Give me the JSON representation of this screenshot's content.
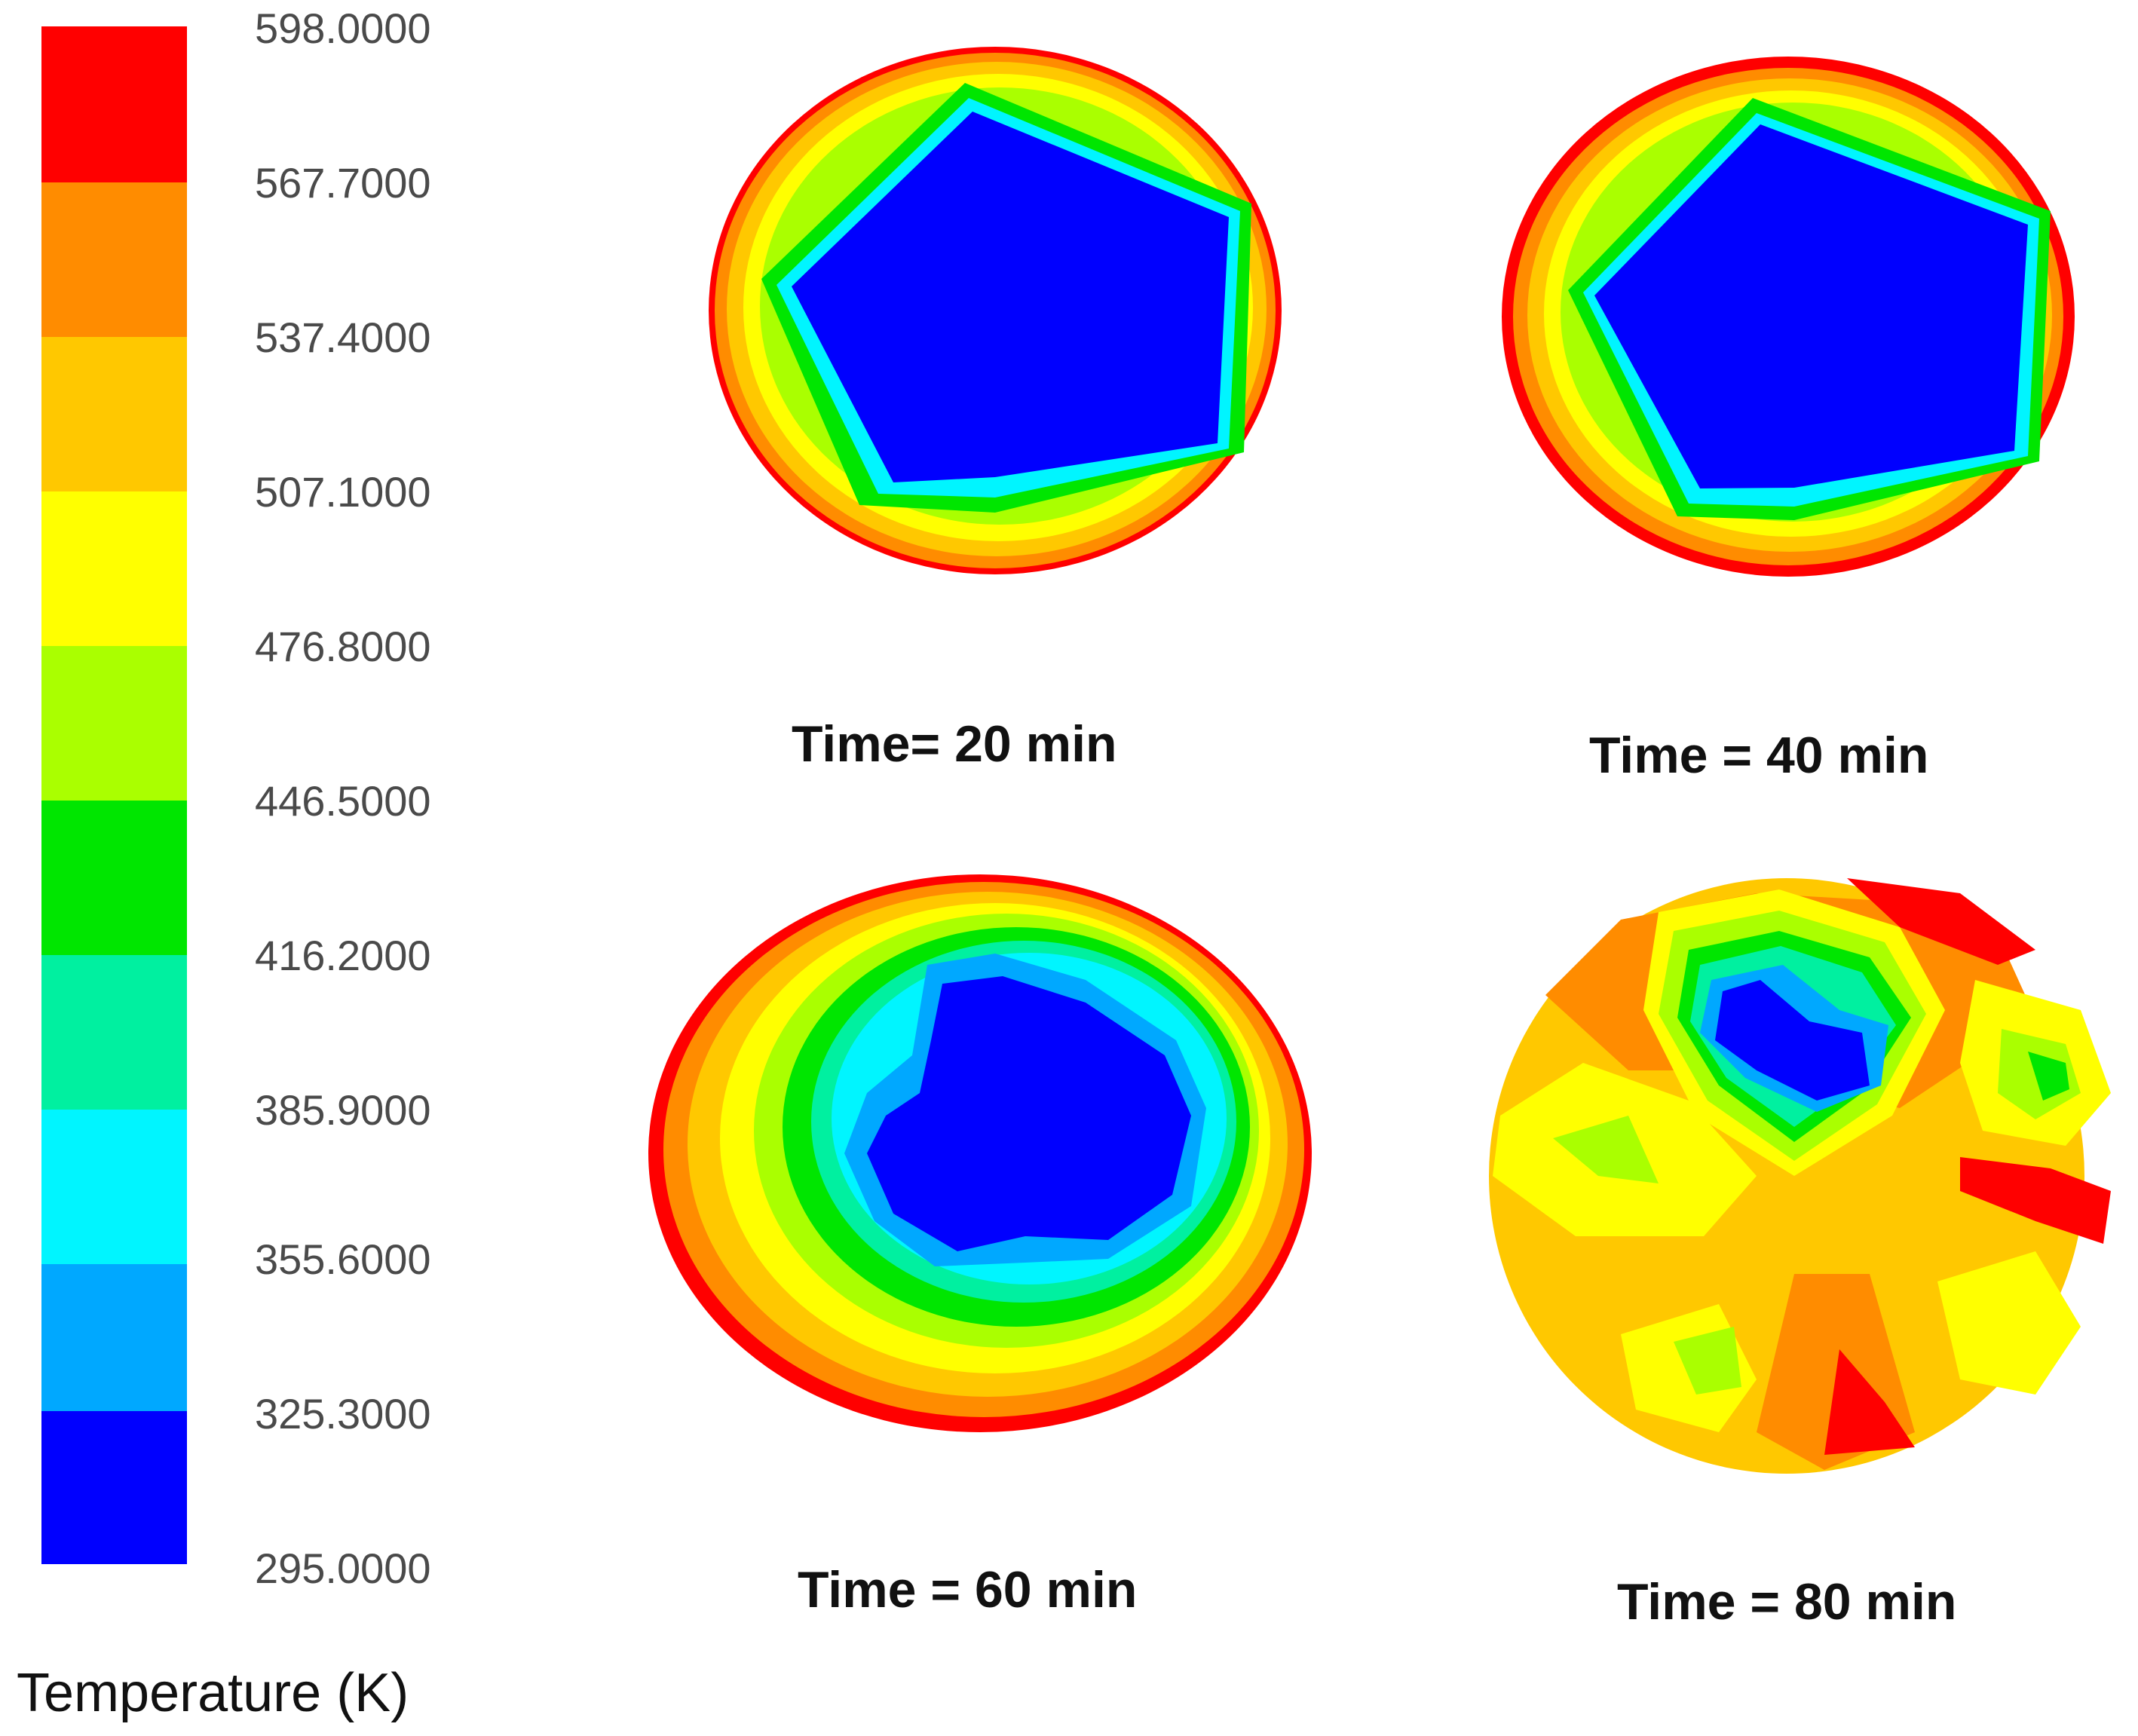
{
  "colorbar": {
    "title": "Temperature (K)",
    "ticks": [
      "598.0000",
      "567.7000",
      "537.4000",
      "507.1000",
      "476.8000",
      "446.5000",
      "416.2000",
      "385.9000",
      "355.6000",
      "325.3000",
      "295.0000"
    ],
    "colors": [
      "#ff0000",
      "#ff8c00",
      "#ffc800",
      "#ffff00",
      "#aaff00",
      "#00e600",
      "#00f0a0",
      "#00f5ff",
      "#00a8ff",
      "#0000ff"
    ]
  },
  "panels": [
    {
      "caption": "Time= 20 min"
    },
    {
      "caption": "Time = 40 min"
    },
    {
      "caption": "Time = 60 min"
    },
    {
      "caption": "Time = 80 min"
    }
  ]
}
